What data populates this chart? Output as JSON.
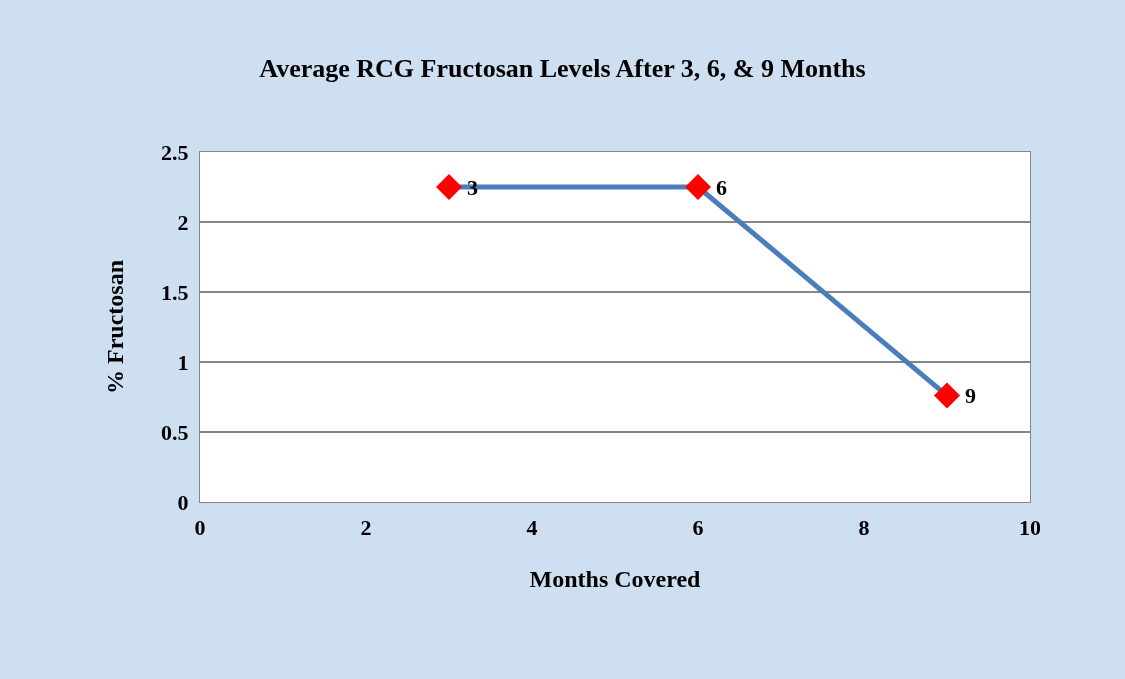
{
  "chart_data": {
    "type": "line",
    "title": "Average RCG Fructosan Levels After 3, 6, & 9 Months",
    "xlabel": "Months Covered",
    "ylabel": "% Fructosan",
    "x": [
      3,
      6,
      9
    ],
    "series": [
      {
        "color": "#4a7ebb",
        "colors": [
          "#ff0000",
          "#ff0000",
          "#ff0000"
        ],
        "values": [
          2.25,
          2.25,
          0.76
        ]
      }
    ],
    "annotations": [
      {
        "text": "3",
        "x": 3,
        "y": 2.25
      },
      {
        "text": "6",
        "x": 6,
        "y": 2.25
      },
      {
        "text": "9",
        "x": 9,
        "y": 0.76
      }
    ],
    "marker": "diamond",
    "xlim": [
      0,
      10
    ],
    "xticks": [
      0,
      2,
      4,
      6,
      8,
      10
    ],
    "ylim": [
      0,
      2.5
    ],
    "yticks": [
      0,
      0.5,
      1,
      1.5,
      2,
      2.5
    ],
    "grid": "y"
  }
}
